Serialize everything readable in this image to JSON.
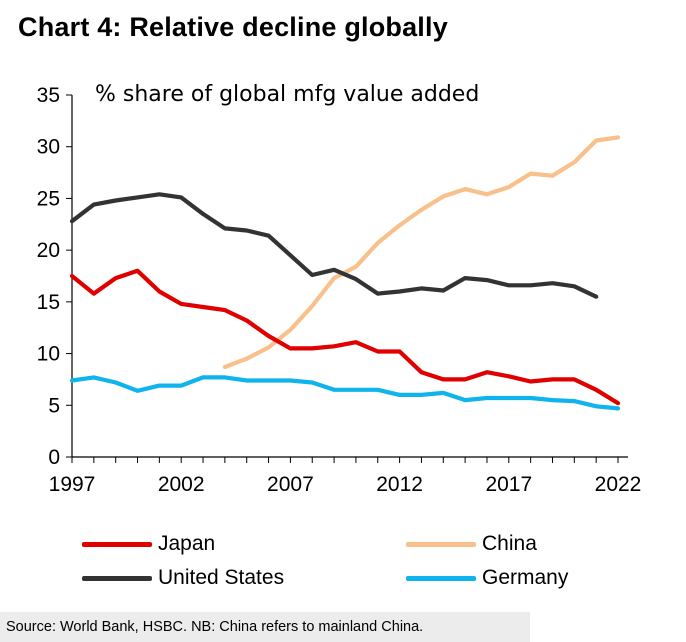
{
  "title": "Chart 4: Relative decline globally",
  "source": "Source: World Bank, HSBC. NB: China refers to mainland China.",
  "chart_data": {
    "type": "line",
    "title": "Chart 4: Relative decline globally",
    "subtitle": "% share of global mfg value added",
    "xlabel": "",
    "ylabel": "",
    "xlim": [
      1997,
      2022
    ],
    "ylim": [
      0,
      35
    ],
    "x_ticks": [
      "1997",
      "2002",
      "2007",
      "2012",
      "2017",
      "2022"
    ],
    "y_ticks": [
      "0",
      "5",
      "10",
      "15",
      "20",
      "25",
      "30",
      "35"
    ],
    "grid": false,
    "legend_position": "bottom",
    "series": [
      {
        "name": "Japan",
        "color": "#e00000",
        "x": [
          1997,
          1998,
          1999,
          2000,
          2001,
          2002,
          2003,
          2004,
          2005,
          2006,
          2007,
          2008,
          2009,
          2010,
          2011,
          2012,
          2013,
          2014,
          2015,
          2016,
          2017,
          2018,
          2019,
          2020,
          2021,
          2022
        ],
        "y": [
          17.5,
          15.8,
          17.3,
          18.0,
          16.0,
          14.8,
          14.5,
          14.2,
          13.2,
          11.7,
          10.5,
          10.5,
          10.7,
          11.1,
          10.2,
          10.2,
          8.2,
          7.5,
          7.5,
          8.2,
          7.8,
          7.3,
          7.5,
          7.5,
          6.5,
          5.2
        ]
      },
      {
        "name": "China",
        "color": "#f8c08a",
        "x": [
          2004,
          2005,
          2006,
          2007,
          2008,
          2009,
          2010,
          2011,
          2012,
          2013,
          2014,
          2015,
          2016,
          2017,
          2018,
          2019,
          2020,
          2021,
          2022
        ],
        "y": [
          8.7,
          9.5,
          10.6,
          12.3,
          14.6,
          17.3,
          18.4,
          20.7,
          22.4,
          23.9,
          25.2,
          25.9,
          25.4,
          26.1,
          27.4,
          27.2,
          28.5,
          30.6,
          30.9
        ]
      },
      {
        "name": "United States",
        "color": "#333333",
        "x": [
          1997,
          1998,
          1999,
          2000,
          2001,
          2002,
          2003,
          2004,
          2005,
          2006,
          2007,
          2008,
          2009,
          2010,
          2011,
          2012,
          2013,
          2014,
          2015,
          2016,
          2017,
          2018,
          2019,
          2020,
          2021
        ],
        "y": [
          22.8,
          24.4,
          24.8,
          25.1,
          25.4,
          25.1,
          23.5,
          22.1,
          21.9,
          21.4,
          19.5,
          17.6,
          18.1,
          17.2,
          15.8,
          16.0,
          16.3,
          16.1,
          17.3,
          17.1,
          16.6,
          16.6,
          16.8,
          16.5,
          15.5
        ]
      },
      {
        "name": "Germany",
        "color": "#10b4ec",
        "x": [
          1997,
          1998,
          1999,
          2000,
          2001,
          2002,
          2003,
          2004,
          2005,
          2006,
          2007,
          2008,
          2009,
          2010,
          2011,
          2012,
          2013,
          2014,
          2015,
          2016,
          2017,
          2018,
          2019,
          2020,
          2021,
          2022
        ],
        "y": [
          7.4,
          7.7,
          7.2,
          6.4,
          6.9,
          6.9,
          7.7,
          7.7,
          7.4,
          7.4,
          7.4,
          7.2,
          6.5,
          6.5,
          6.5,
          6.0,
          6.0,
          6.2,
          5.5,
          5.7,
          5.7,
          5.7,
          5.5,
          5.4,
          4.9,
          4.7
        ]
      }
    ]
  }
}
